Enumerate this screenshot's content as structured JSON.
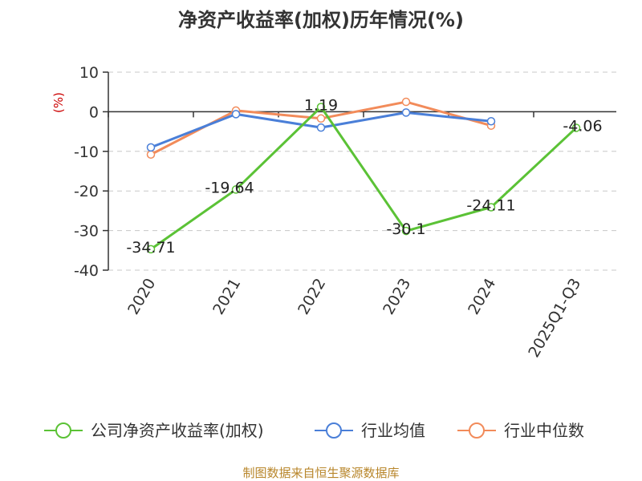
{
  "chart_data": {
    "type": "line",
    "title": "净资产收益率(加权)历年情况(%)",
    "ylabel": "(%)",
    "ylim": [
      -40,
      10
    ],
    "yticks": [
      10,
      0,
      -10,
      -20,
      -30,
      -40
    ],
    "categories": [
      "2020",
      "2021",
      "2022",
      "2023",
      "2024",
      "2025Q1-Q3"
    ],
    "grid": true,
    "legend_position": "bottom",
    "series": [
      {
        "name": "公司净资产收益率(加权)",
        "color": "#5bc236",
        "values": [
          -34.71,
          -19.64,
          1.19,
          -30.1,
          -24.11,
          -4.06
        ],
        "labels": [
          "-34.71",
          "-19.64",
          "1.19",
          "-30.1",
          "-24.11",
          "-4.06"
        ]
      },
      {
        "name": "行业均值",
        "color": "#4a7fd8",
        "values": [
          -9,
          -0.6,
          -4,
          -0.2,
          -2.4,
          null
        ]
      },
      {
        "name": "行业中位数",
        "color": "#f28b5a",
        "values": [
          -10.8,
          0.3,
          -1.7,
          2.5,
          -3.5,
          null
        ]
      }
    ]
  },
  "footer": {
    "source": "制图数据来自恒生聚源数据库"
  }
}
